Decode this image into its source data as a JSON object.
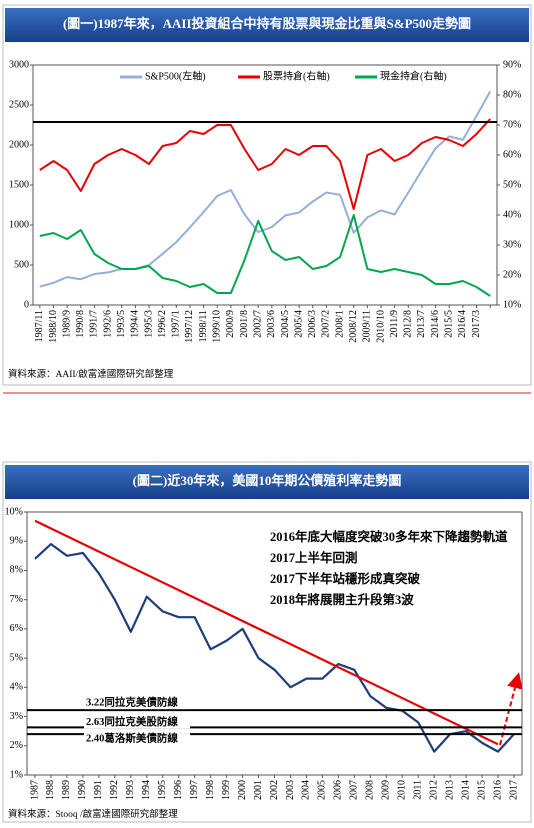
{
  "chart_data": [
    {
      "type": "line",
      "title": "(圖一)1987年來，AAII投資組合中持有股票與現金比重與S&P500走勢圖",
      "source": "資料來源：AAII/啟富達國際研究部整理",
      "categories": [
        "1987/11",
        "1988/10",
        "1989/9",
        "1990/8",
        "1991/7",
        "1992/6",
        "1993/5",
        "1994/4",
        "1995/3",
        "1996/2",
        "1997/1",
        "1997/12",
        "1998/11",
        "1999/10",
        "2000/9",
        "2001/8",
        "2002/7",
        "2003/6",
        "2004/5",
        "2005/4",
        "2006/3",
        "2007/2",
        "2008/1",
        "2008/12",
        "2009/11",
        "2010/10",
        "2011/9",
        "2012/8",
        "2013/7",
        "2014/6",
        "2015/5",
        "2016/4",
        "2017/3",
        null
      ],
      "series": [
        {
          "name": "S&P500(左軸)",
          "color": "#94afd8",
          "axis": "y",
          "values": [
            230,
            278,
            349,
            322,
            387,
            408,
            450,
            450,
            500,
            640,
            786,
            970,
            1163,
            1362,
            1436,
            1133,
            911,
            975,
            1120,
            1156,
            1294,
            1406,
            1378,
            903,
            1095,
            1183,
            1131,
            1406,
            1685,
            1960,
            2107,
            2065,
            2362,
            2670
          ]
        },
        {
          "name": "股票持倉(右軸)",
          "color": "#e60000",
          "axis": "y2",
          "values": [
            55,
            58,
            55,
            48,
            57,
            60,
            62,
            60,
            57,
            63,
            64,
            68,
            67,
            70,
            70,
            62,
            55,
            57,
            62,
            60,
            63,
            63,
            58,
            42,
            60,
            62,
            58,
            60,
            64,
            66,
            65,
            63,
            67,
            72
          ]
        },
        {
          "name": "現金持倉(右軸)",
          "color": "#00a651",
          "axis": "y2",
          "values": [
            33,
            34,
            32,
            35,
            27,
            24,
            22,
            22,
            23,
            19,
            18,
            16,
            17,
            14,
            14,
            25,
            38,
            28,
            25,
            26,
            22,
            23,
            26,
            40,
            22,
            21,
            22,
            21,
            20,
            17,
            17,
            18,
            16,
            13
          ]
        }
      ],
      "ylim": [
        0,
        3000
      ],
      "yticks": [
        0,
        500,
        1000,
        1500,
        2000,
        2500,
        3000
      ],
      "y2lim": [
        10,
        90
      ],
      "y2ticks": [
        {
          "value": 10,
          "label": "10%"
        },
        {
          "value": 20,
          "label": "20%"
        },
        {
          "value": 30,
          "label": "30%"
        },
        {
          "value": 40,
          "label": "40%"
        },
        {
          "value": 50,
          "label": "50%"
        },
        {
          "value": 60,
          "label": "60%"
        },
        {
          "value": 70,
          "label": "70%"
        },
        {
          "value": 80,
          "label": "80%"
        },
        {
          "value": 90,
          "label": "90%"
        }
      ],
      "reference_lines": [
        {
          "value": 71,
          "axis": "y2",
          "color": "#000000"
        }
      ],
      "legend": "top"
    },
    {
      "type": "line",
      "title": "(圖二)近30年來，美國10年期公債殖利率走勢圖",
      "source": "資料來源：Stooq /啟富達國際研究部整理",
      "categories": [
        "1987",
        "1988",
        "1989",
        "1990",
        "1991",
        "1992",
        "1993",
        "1994",
        "1995",
        "1996",
        "1997",
        "1998",
        "1999",
        "2000",
        "2001",
        "2002",
        "2003",
        "2004",
        "2005",
        "2006",
        "2007",
        "2008",
        "2009",
        "2010",
        "2011",
        "2012",
        "2013",
        "2014",
        "2015",
        "2016",
        "2017"
      ],
      "series": [
        {
          "color": "#1f3d78",
          "axis": "y",
          "values": [
            8.4,
            8.9,
            8.5,
            8.6,
            7.9,
            7.0,
            5.9,
            7.1,
            6.6,
            6.4,
            6.4,
            5.3,
            5.6,
            6.0,
            5.0,
            4.6,
            4.0,
            4.3,
            4.3,
            4.8,
            4.6,
            3.7,
            3.3,
            3.2,
            2.8,
            1.8,
            2.4,
            2.5,
            2.1,
            1.8,
            2.4
          ]
        }
      ],
      "ylim": [
        1,
        10
      ],
      "yticks": [
        {
          "value": 1,
          "label": "1%"
        },
        {
          "value": 2,
          "label": "2%"
        },
        {
          "value": 3,
          "label": "3%"
        },
        {
          "value": 4,
          "label": "4%"
        },
        {
          "value": 5,
          "label": "5%"
        },
        {
          "value": 6,
          "label": "6%"
        },
        {
          "value": 7,
          "label": "7%"
        },
        {
          "value": 8,
          "label": "8%"
        },
        {
          "value": 9,
          "label": "9%"
        },
        {
          "value": 10,
          "label": "10%"
        }
      ],
      "trend_line": {
        "x": [
          "1987",
          "2016"
        ],
        "values": [
          9.7,
          2.05
        ],
        "color": "#e60000"
      },
      "reference_lines": [
        {
          "value": 3.22,
          "label": "3.22同拉克美債防線",
          "color": "#000000"
        },
        {
          "value": 2.63,
          "label": "2.63同拉克美股防線",
          "color": "#000000"
        },
        {
          "value": 2.4,
          "label": "2.40葛洛斯美債防線",
          "color": "#000000"
        }
      ],
      "annotations": [
        "2016年底大幅度突破30多年來下降趨勢軌道",
        "2017上半年回測",
        "2017下半年站穩形成真突破",
        "2018年將展開主升段第3波"
      ]
    }
  ]
}
